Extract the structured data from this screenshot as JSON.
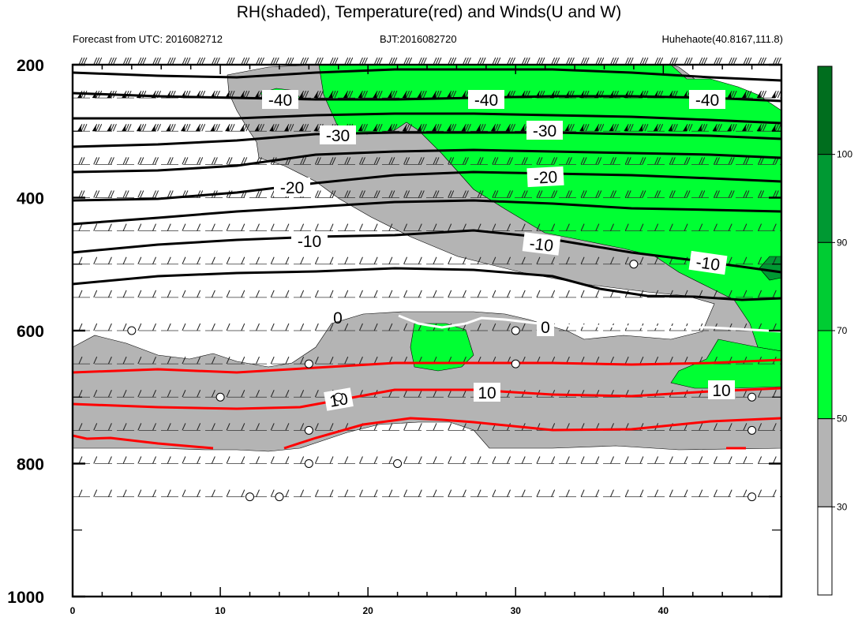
{
  "chart_data": {
    "type": "contour",
    "title": "RH(shaded), Temperature(red) and Winds(U and W)",
    "subtitle_left": "Forecast from UTC: 2016082712",
    "subtitle_center": "BJT:2016082720",
    "subtitle_right": "Huhehaote(40.8167,111.8)",
    "x_axis": {
      "range": [
        0,
        48
      ],
      "ticks": [
        0,
        10,
        20,
        30,
        40
      ]
    },
    "y_axis": {
      "range": [
        200,
        1000
      ],
      "ticks": [
        200,
        400,
        600,
        800,
        1000
      ],
      "inverted": true
    },
    "pressure_levels": [
      200,
      250,
      300,
      350,
      400,
      450,
      500,
      550,
      600,
      650,
      700,
      750,
      800,
      850
    ],
    "colorbar": {
      "labels": [
        "30",
        "50",
        "70",
        "90",
        "100"
      ],
      "colors": [
        "#ffffff",
        "#b4b4b4",
        "#00ff33",
        "#00cc33",
        "#009933",
        "#006e1e"
      ]
    },
    "temperature_labels": [
      "-40",
      "-40",
      "-40",
      "-30",
      "-30",
      "-20",
      "-20",
      "-10",
      "-10",
      "-10",
      "0",
      "0",
      "10",
      "10",
      "10"
    ],
    "line_colors": {
      "cold": "#000000",
      "freezing": "#ffffff",
      "warm": "#ff0000"
    },
    "calm_wind_points": [
      [
        4,
        600
      ],
      [
        30,
        600
      ],
      [
        16,
        650
      ],
      [
        30,
        650
      ],
      [
        10,
        700
      ],
      [
        18,
        700
      ],
      [
        46,
        700
      ],
      [
        16,
        750
      ],
      [
        46,
        750
      ],
      [
        16,
        800
      ],
      [
        22,
        800
      ],
      [
        12,
        850
      ],
      [
        14,
        850
      ],
      [
        46,
        850
      ],
      [
        38,
        500
      ]
    ]
  }
}
